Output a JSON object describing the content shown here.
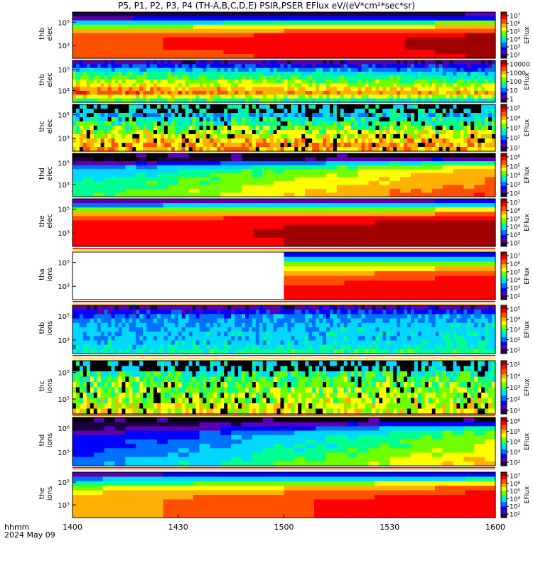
{
  "title": "P5, P1, P2, P3, P4 (TH-A,B,C,D,E) PSIR,PSER EFlux eV/(eV*cm²*sec*sr)",
  "footer": {
    "line1": "hhmm",
    "line2": "2024 May 09"
  },
  "colors": {
    "colormap": [
      "#1a0040",
      "#5a00b0",
      "#0000ff",
      "#0070ff",
      "#00d8ff",
      "#00ff90",
      "#70ff00",
      "#ffff00",
      "#ffb000",
      "#ff5000",
      "#ff0000",
      "#a00000"
    ],
    "no_data": "#ffffff",
    "frame": "#000000"
  },
  "chart_data": {
    "type": "heatmap",
    "x_axis": {
      "label": "hhmm",
      "range": [
        "1400",
        "1600"
      ],
      "ticks": [
        "1400",
        "1430",
        "1500",
        "1530",
        "1600"
      ]
    },
    "panels": [
      {
        "ylabel": [
          "thb",
          "elec"
        ],
        "yscale": "log",
        "yticks": [
          "10⁵",
          "10³"
        ],
        "colorbar": {
          "label": "EFlux",
          "ticks": [
            "10⁷",
            "10⁶",
            "10⁵",
            "10⁴",
            "10³",
            "10²"
          ]
        },
        "pattern": "smooth",
        "rows": [
          0.05,
          0.2,
          0.45,
          0.62,
          0.75,
          0.85,
          0.88,
          0.88,
          0.88,
          0.86,
          0.85
        ],
        "trend": 0.08
      },
      {
        "ylabel": [
          "thb",
          "elec"
        ],
        "yscale": "log",
        "yticks": [
          "10⁵",
          "10³"
        ],
        "colorbar": {
          "label": "EFlux",
          "ticks": [
            "10000",
            "1000",
            "100",
            "10",
            "1"
          ]
        },
        "pattern": "grainy",
        "rows": [
          0.12,
          0.22,
          0.32,
          0.42,
          0.48,
          0.55,
          0.6,
          0.68,
          0.75,
          0.6,
          0.45
        ],
        "trend": -0.05
      },
      {
        "ylabel": [
          "thc",
          "elec"
        ],
        "yscale": "log",
        "yticks": [
          "10⁵",
          "10³"
        ],
        "colorbar": {
          "label": "EFlux",
          "ticks": [
            "10⁵",
            "10⁴",
            "10³",
            "10²",
            "10¹"
          ]
        },
        "pattern": "striped",
        "rows": [
          0.0,
          0.0,
          0.35,
          0.42,
          0.48,
          0.52,
          0.58,
          0.62,
          0.68,
          0.72,
          0.7
        ],
        "trend": 0.0
      },
      {
        "ylabel": [
          "thd",
          "elec"
        ],
        "yscale": "log",
        "yticks": [
          "10⁵",
          "10³"
        ],
        "colorbar": {
          "label": "EFlux",
          "ticks": [
            "10⁶",
            "10⁵",
            "10⁴",
            "10³",
            "10²"
          ]
        },
        "pattern": "gradient",
        "rows": [
          0.0,
          0.08,
          0.3,
          0.45,
          0.52,
          0.55,
          0.58,
          0.6,
          0.62,
          0.64,
          0.66
        ],
        "trend": 0.18
      },
      {
        "ylabel": [
          "the",
          "elec"
        ],
        "yscale": "log",
        "yticks": [
          "10⁵",
          "10³"
        ],
        "colorbar": {
          "label": "EFlux",
          "ticks": [
            "10⁷",
            "10⁶",
            "10⁵",
            "10⁴",
            "10³",
            "10²"
          ]
        },
        "pattern": "smooth",
        "rows": [
          0.15,
          0.35,
          0.55,
          0.72,
          0.85,
          0.9,
          0.92,
          0.93,
          0.93,
          0.92,
          0.92
        ],
        "trend": 0.05
      },
      {
        "ylabel": [
          "tha",
          "ions"
        ],
        "yscale": "log",
        "yticks": [
          "10⁵",
          "10³"
        ],
        "colorbar": {
          "label": "EFlux",
          "ticks": [
            "10⁷",
            "10⁶",
            "10⁵",
            "10⁴",
            "10³",
            "10²"
          ]
        },
        "pattern": "partial",
        "data_start_frac": 0.46,
        "rows": [
          0.2,
          0.35,
          0.5,
          0.62,
          0.72,
          0.78,
          0.82,
          0.84,
          0.84,
          0.84
        ],
        "trend": 0.08
      },
      {
        "ylabel": [
          "thb",
          "ions"
        ],
        "yscale": "log",
        "yticks": [
          "10⁵",
          "10³"
        ],
        "colorbar": {
          "label": "EFlux",
          "ticks": [
            "10⁵",
            "10⁴",
            "10³",
            "10²",
            "10¹"
          ]
        },
        "pattern": "grainy",
        "rows": [
          0.12,
          0.22,
          0.3,
          0.33,
          0.35,
          0.36,
          0.37,
          0.37,
          0.38,
          0.4,
          0.45
        ],
        "trend": 0.02
      },
      {
        "ylabel": [
          "thc",
          "ions"
        ],
        "yscale": "log",
        "yticks": [
          "10⁵",
          "10⁵"
        ],
        "colorbar": {
          "label": "EFlux",
          "ticks": [
            "10⁵",
            "10⁴",
            "10³",
            "10²",
            "10¹"
          ]
        },
        "pattern": "striped",
        "rows": [
          0.0,
          0.42,
          0.46,
          0.5,
          0.52,
          0.55,
          0.56,
          0.58,
          0.6,
          0.62
        ],
        "trend": 0.0
      },
      {
        "ylabel": [
          "thd",
          "ions"
        ],
        "yscale": "log",
        "yticks": [
          "10⁶",
          "10⁵"
        ],
        "colorbar": {
          "label": "EFlux",
          "ticks": [
            "10⁶",
            "10⁵",
            "10⁴",
            "10³",
            "10²"
          ]
        },
        "pattern": "gradient",
        "rows": [
          0.0,
          0.12,
          0.25,
          0.33,
          0.36,
          0.38,
          0.4,
          0.42,
          0.45,
          0.48,
          0.5
        ],
        "trend": 0.2
      },
      {
        "ylabel": [
          "the",
          "ions"
        ],
        "yscale": "log",
        "yticks": [
          "10⁵",
          "10⁵"
        ],
        "colorbar": {
          "label": "EFlux",
          "ticks": [
            "10⁷",
            "10⁶",
            "10⁵",
            "10⁴",
            "10³",
            "10²"
          ]
        },
        "pattern": "smooth",
        "rows": [
          0.2,
          0.38,
          0.55,
          0.68,
          0.76,
          0.8,
          0.82,
          0.82,
          0.82,
          0.82
        ],
        "trend": 0.1
      }
    ]
  }
}
